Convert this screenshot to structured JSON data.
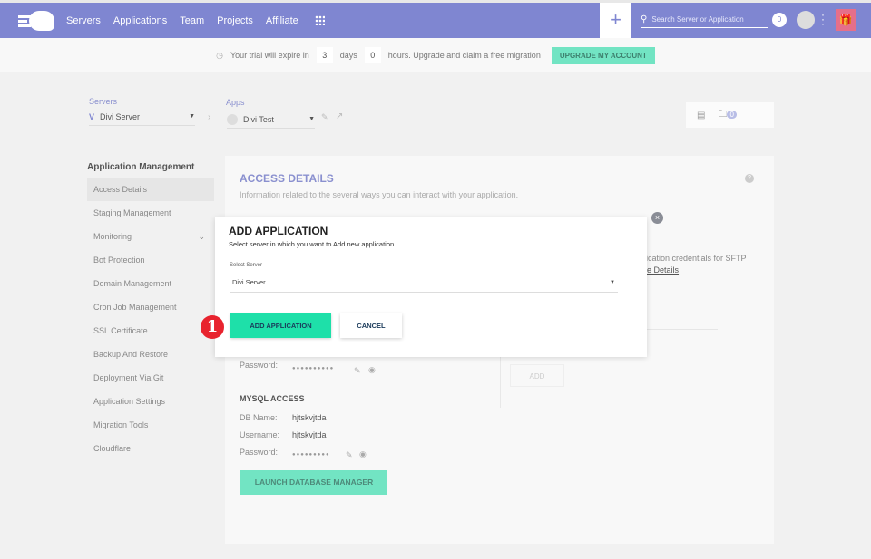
{
  "header": {
    "nav": [
      "Servers",
      "Applications",
      "Team",
      "Projects",
      "Affiliate"
    ],
    "search_placeholder": "Search Server or Application",
    "notifications": "0",
    "brand_color": "#7f86d1"
  },
  "trial": {
    "prefix": "Your trial will expire in",
    "days": "3",
    "days_label": "days",
    "hours": "0",
    "suffix": "hours. Upgrade and claim a free migration",
    "upgrade": "UPGRADE MY ACCOUNT"
  },
  "breadcrumb": {
    "servers_label": "Servers",
    "server": "Divi Server",
    "apps_label": "Apps",
    "app": "Divi Test"
  },
  "tools": {
    "folder_count": "0"
  },
  "sidebar": {
    "title": "Application Management",
    "items": [
      "Access Details",
      "Staging Management",
      "Monitoring",
      "Bot Protection",
      "Domain Management",
      "Cron Job Management",
      "SSL Certificate",
      "Backup And Restore",
      "Deployment Via Git",
      "Application Settings",
      "Migration Tools",
      "Cloudflare"
    ]
  },
  "panel": {
    "title": "ACCESS DETAILS",
    "desc": "Information related to the several ways you can interact with your application.",
    "sftp_text": "plication credentials for SFTP",
    "more": "ore Details",
    "password_label": "Password:",
    "password_mask": "●●●●●●●●●●",
    "add": "ADD",
    "mysql_title": "MYSQL ACCESS",
    "db_name_label": "DB Name:",
    "db_name": "hjtskvjtda",
    "username_label": "Username:",
    "username": "hjtskvjtda",
    "mysql_password_label": "Password:",
    "mysql_password_mask": "●●●●●●●●●",
    "launch": "LAUNCH DATABASE MANAGER"
  },
  "modal": {
    "title": "ADD APPLICATION",
    "subtitle": "Select server in which you want to Add new application",
    "select_label": "Select Server",
    "selected": "Divi Server",
    "ok": "ADD APPLICATION",
    "cancel": "CANCEL",
    "step": "1"
  }
}
